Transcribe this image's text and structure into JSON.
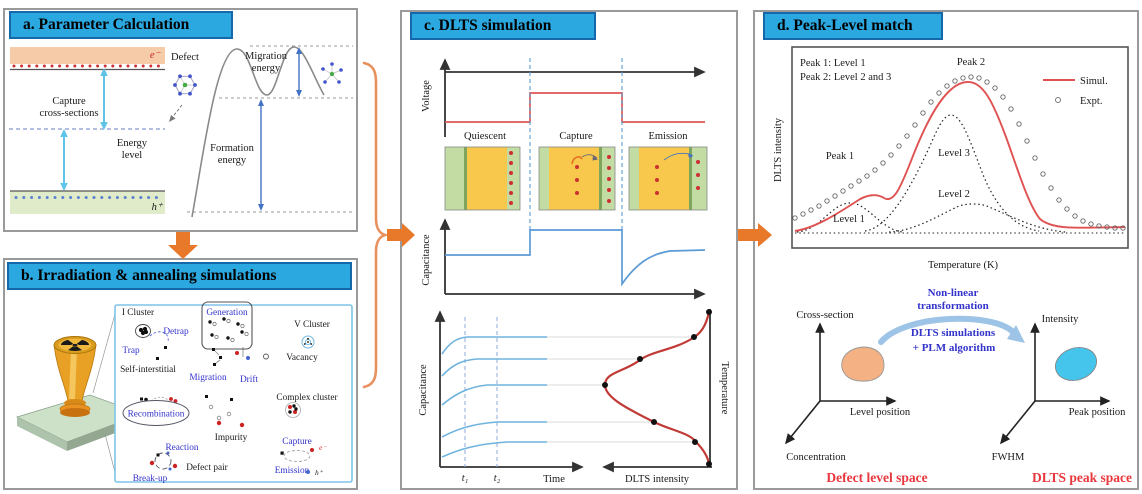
{
  "colors": {
    "banner_blue": "#2BA8E0",
    "banner_border": "#1768A8",
    "arrow_orange": "#E8782A",
    "simulation_red": "#E05252",
    "signal_blue": "#5B9BD5",
    "transient_blue": "#6FB3DE",
    "dlts_peak_red": "#C03A36",
    "blue_label": "#3333CC",
    "caption_red": "#E8373D",
    "band_salmon": "#F5CBA8",
    "band_green": "#E0EBC9",
    "device_yellow": "#F7C84C",
    "device_green": "#C3DCA4",
    "blob_orange": "#F4B183",
    "blob_cyan": "#45C5EC"
  },
  "panels": {
    "a": {
      "title": "a. Parameter Calculation",
      "electron": "e⁻",
      "hole": "h⁺",
      "capture_l1": "Capture",
      "capture_l2": "cross-sections",
      "energy_l1": "Energy",
      "energy_l2": "level",
      "defect": "Defect",
      "migration_l1": "Migration",
      "migration_l2": "energy",
      "formation_l1": "Formation",
      "formation_l2": "energy"
    },
    "b": {
      "title": "b. Irradiation & annealing simulations",
      "i_cluster": "I Cluster",
      "detrap": "Detrap",
      "trap": "Trap",
      "self_interstitial": "Self-interstitial",
      "generation": "Generation",
      "v_cluster": "V Cluster",
      "vacancy": "Vacancy",
      "migration": "Migration",
      "drift": "Drift",
      "recombination": "Recombination",
      "complex_cluster": "Complex cluster",
      "impurity": "Impurity",
      "reaction": "Reaction",
      "defect_pair": "Defect pair",
      "capture": "Capture",
      "emission": "Emission",
      "break_up": "Break-up",
      "electron": "e⁻",
      "hole": "h⁺"
    },
    "c": {
      "title": "c. DLTS simulation",
      "voltage": "Voltage",
      "capacitance": "Capacitance",
      "quiescent": "Quiescent",
      "capture": "Capture",
      "emission": "Emission",
      "t1": "t₁",
      "t2": "t₂",
      "time": "Time",
      "dlts_intensity": "DLTS intensity",
      "temperature": "Temperature"
    },
    "d": {
      "title": "d. Peak-Level match",
      "plot": {
        "note1": "Peak 1: Level 1",
        "note2": "Peak 2: Level 2 and 3",
        "peak2": "Peak 2",
        "peak1": "Peak 1",
        "level3": "Level 3",
        "level2": "Level 2",
        "level1": "Level 1",
        "legend_sim": "Simul.",
        "legend_expt": "Expt.",
        "ylabel": "DLTS intensity",
        "xlabel": "Temperature (K)",
        "expt_points": [
          [
            40,
            206
          ],
          [
            48,
            202
          ],
          [
            56,
            198
          ],
          [
            64,
            194
          ],
          [
            72,
            189
          ],
          [
            80,
            184
          ],
          [
            88,
            179
          ],
          [
            96,
            174
          ],
          [
            104,
            169
          ],
          [
            112,
            164
          ],
          [
            120,
            158
          ],
          [
            128,
            151
          ],
          [
            136,
            143
          ],
          [
            144,
            134
          ],
          [
            152,
            124
          ],
          [
            160,
            113
          ],
          [
            168,
            101
          ],
          [
            176,
            90
          ],
          [
            184,
            81
          ],
          [
            192,
            74
          ],
          [
            200,
            69
          ],
          [
            208,
            66
          ],
          [
            216,
            65
          ],
          [
            224,
            66
          ],
          [
            232,
            70
          ],
          [
            240,
            76
          ],
          [
            248,
            85
          ],
          [
            256,
            97
          ],
          [
            264,
            112
          ],
          [
            272,
            129
          ],
          [
            280,
            146
          ],
          [
            288,
            162
          ],
          [
            296,
            176
          ],
          [
            304,
            188
          ],
          [
            312,
            197
          ],
          [
            320,
            204
          ],
          [
            328,
            209
          ],
          [
            336,
            212
          ],
          [
            344,
            214
          ],
          [
            352,
            215
          ],
          [
            360,
            216
          ],
          [
            368,
            216
          ]
        ]
      },
      "transform": {
        "l1": "Non-linear",
        "l2": "transformation",
        "l3": "DLTS simulations",
        "l4": "+ PLM algorithm"
      },
      "defect_space": {
        "y_axis": "Cross-section",
        "x_axis": "Level position",
        "z_axis": "Concentration",
        "caption": "Defect level space"
      },
      "peak_space": {
        "y_axis": "Intensity",
        "x_axis": "Peak position",
        "z_axis": "FWHM",
        "caption": "DLTS peak space"
      }
    }
  },
  "chart_data": [
    {
      "type": "line",
      "panel": "d",
      "title": "Peak-Level match",
      "xlabel": "Temperature (K)",
      "ylabel": "DLTS intensity",
      "axes_numeric": false,
      "legend_position": "upper right",
      "series": [
        {
          "name": "Simul.",
          "style": "red solid line",
          "description": "small shoulder Peak 1 (from Level 1) followed by large Peak 2 (from Levels 2 and 3)"
        },
        {
          "name": "Expt.",
          "style": "open circles",
          "description": "experimental points tracking the simulated curve"
        },
        {
          "name": "Level 1",
          "style": "black dotted",
          "description": "small component peak under Peak 1"
        },
        {
          "name": "Level 2",
          "style": "black dotted",
          "description": "small broad component on high-temperature side of Peak 2"
        },
        {
          "name": "Level 3",
          "style": "black dotted",
          "description": "large component forming most of Peak 2"
        }
      ]
    },
    {
      "type": "line",
      "panel": "c",
      "title": "DLTS simulation",
      "axes_numeric": false,
      "description": "Voltage pulse with Quiescent / Capture / Emission phases; capacitance step-and-recovery transient; family of capacitance transients vs time sampled at t1 and t2 mapping onto a DLTS intensity peak vs temperature"
    }
  ]
}
